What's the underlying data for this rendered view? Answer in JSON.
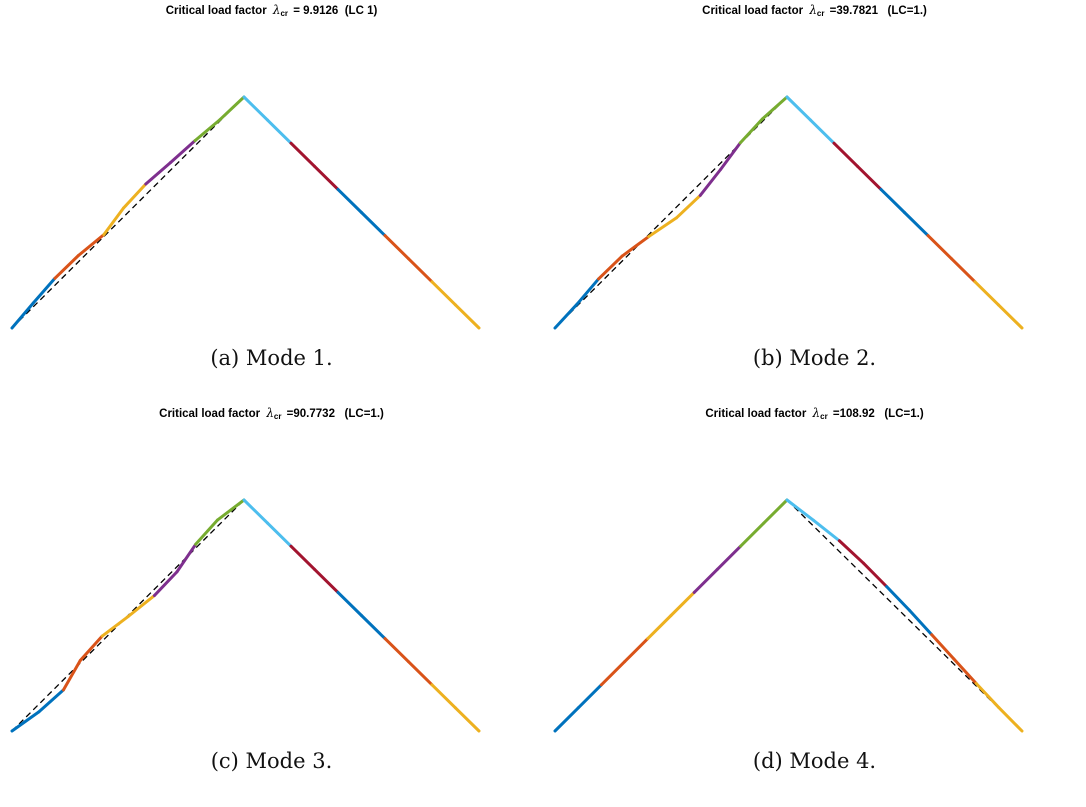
{
  "figure": {
    "panels": [
      {
        "title_prefix": "Critical load factor",
        "lambda_symbol": "λ",
        "lambda_sub": "cr",
        "title_value": " = 9.9126  (LC 1)",
        "caption": "(a) Mode 1.",
        "mode_side": "left",
        "mode_shape": [
          0,
          0.3,
          0.55,
          0.5,
          0.15,
          0.7,
          0.85,
          0.6,
          0.4,
          0.1,
          0
        ]
      },
      {
        "title_prefix": "Critical load factor",
        "lambda_symbol": "λ",
        "lambda_sub": "cr",
        "title_value": " =39.7821   (LC=1.)",
        "caption": "(b) Mode 2.",
        "mode_side": "left",
        "mode_shape": [
          0,
          0.15,
          0.45,
          0.4,
          -0.15,
          -0.85,
          -0.95,
          -0.5,
          0.05,
          0.2,
          0
        ]
      },
      {
        "title_prefix": "Critical load factor",
        "lambda_symbol": "λ",
        "lambda_sub": "cr",
        "title_value": " =90.7732   (LC=1.)",
        "caption": "(c) Mode 3.",
        "mode_side": "left",
        "mode_shape": [
          0,
          -0.6,
          -0.8,
          0.2,
          0.4,
          -0.1,
          -0.5,
          -0.4,
          0.3,
          0.5,
          0
        ]
      },
      {
        "title_prefix": "Critical load factor",
        "lambda_symbol": "λ",
        "lambda_sub": "cr",
        "title_value": " =108.92   (LC=1.)",
        "caption": "(d) Mode 4.",
        "mode_side": "right",
        "mode_shape": [
          0,
          0.45,
          0.85,
          0.95,
          0.9,
          0.8,
          0.6,
          0.4,
          0.2,
          0.05,
          0
        ]
      }
    ],
    "segment_colors": [
      "#0072BD",
      "#D95319",
      "#EDB120",
      "#7E2F8E",
      "#77AC30",
      "#4DBEEE",
      "#A2142F",
      "#0072BD",
      "#D95319",
      "#EDB120"
    ],
    "mode_line_color": "#000000",
    "mode_line_style": "dashed"
  }
}
